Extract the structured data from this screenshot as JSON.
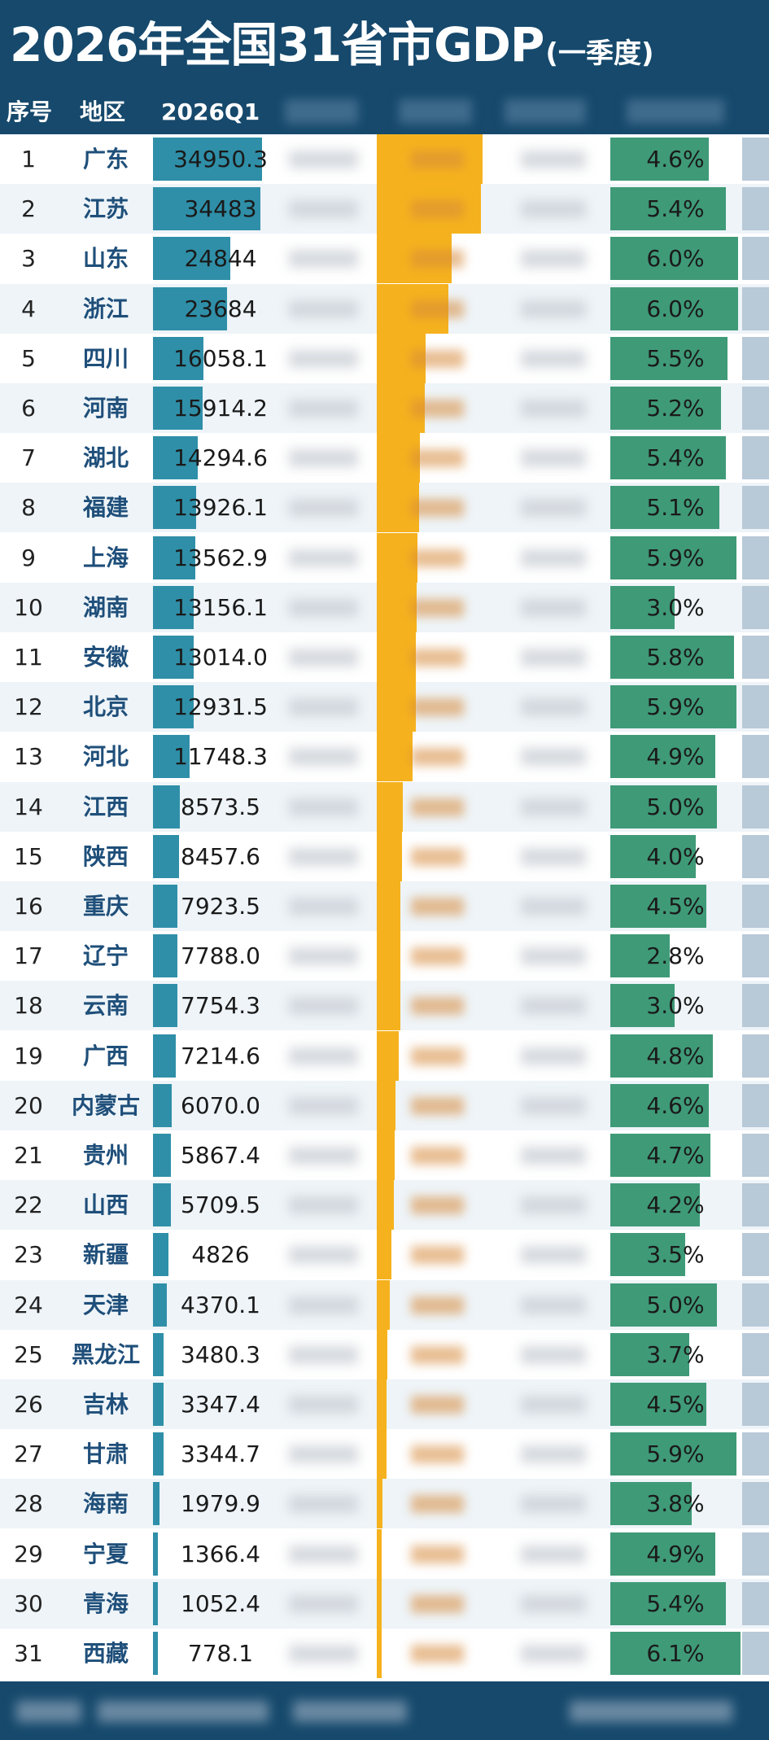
{
  "title": {
    "main": "2026年全国31省市GDP",
    "sub": "(一季度)"
  },
  "header": {
    "rank": "序号",
    "region": "地区",
    "gdp": "2026Q1"
  },
  "colors": {
    "navy": "#16496c",
    "gdp_bar": "#2f8fa8",
    "orange": "#f5b21e",
    "growth_bar": "#3f9a78",
    "row_alt": "#eef4f8"
  },
  "chart_data": {
    "type": "table",
    "title": "2026年全国31省市GDP(一季度)",
    "columns": [
      "序号",
      "地区",
      "2026Q1",
      "增速"
    ],
    "gdp_max": 34950.3,
    "growth_max": 6.1,
    "rows": [
      {
        "rank": "1",
        "region": "广东",
        "gdp": "34950.3",
        "gdp_value": 34950.3,
        "growth": "4.6%",
        "growth_value": 4.6
      },
      {
        "rank": "2",
        "region": "江苏",
        "gdp": "34483",
        "gdp_value": 34483,
        "growth": "5.4%",
        "growth_value": 5.4
      },
      {
        "rank": "3",
        "region": "山东",
        "gdp": "24844",
        "gdp_value": 24844,
        "growth": "6.0%",
        "growth_value": 6.0
      },
      {
        "rank": "4",
        "region": "浙江",
        "gdp": "23684",
        "gdp_value": 23684,
        "growth": "6.0%",
        "growth_value": 6.0
      },
      {
        "rank": "5",
        "region": "四川",
        "gdp": "16058.1",
        "gdp_value": 16058.1,
        "growth": "5.5%",
        "growth_value": 5.5
      },
      {
        "rank": "6",
        "region": "河南",
        "gdp": "15914.2",
        "gdp_value": 15914.2,
        "growth": "5.2%",
        "growth_value": 5.2
      },
      {
        "rank": "7",
        "region": "湖北",
        "gdp": "14294.6",
        "gdp_value": 14294.6,
        "growth": "5.4%",
        "growth_value": 5.4
      },
      {
        "rank": "8",
        "region": "福建",
        "gdp": "13926.1",
        "gdp_value": 13926.1,
        "growth": "5.1%",
        "growth_value": 5.1
      },
      {
        "rank": "9",
        "region": "上海",
        "gdp": "13562.9",
        "gdp_value": 13562.9,
        "growth": "5.9%",
        "growth_value": 5.9
      },
      {
        "rank": "10",
        "region": "湖南",
        "gdp": "13156.1",
        "gdp_value": 13156.1,
        "growth": "3.0%",
        "growth_value": 3.0
      },
      {
        "rank": "11",
        "region": "安徽",
        "gdp": "13014.0",
        "gdp_value": 13014.0,
        "growth": "5.8%",
        "growth_value": 5.8
      },
      {
        "rank": "12",
        "region": "北京",
        "gdp": "12931.5",
        "gdp_value": 12931.5,
        "growth": "5.9%",
        "growth_value": 5.9
      },
      {
        "rank": "13",
        "region": "河北",
        "gdp": "11748.3",
        "gdp_value": 11748.3,
        "growth": "4.9%",
        "growth_value": 4.9
      },
      {
        "rank": "14",
        "region": "江西",
        "gdp": "8573.5",
        "gdp_value": 8573.5,
        "growth": "5.0%",
        "growth_value": 5.0
      },
      {
        "rank": "15",
        "region": "陕西",
        "gdp": "8457.6",
        "gdp_value": 8457.6,
        "growth": "4.0%",
        "growth_value": 4.0
      },
      {
        "rank": "16",
        "region": "重庆",
        "gdp": "7923.5",
        "gdp_value": 7923.5,
        "growth": "4.5%",
        "growth_value": 4.5
      },
      {
        "rank": "17",
        "region": "辽宁",
        "gdp": "7788.0",
        "gdp_value": 7788.0,
        "growth": "2.8%",
        "growth_value": 2.8
      },
      {
        "rank": "18",
        "region": "云南",
        "gdp": "7754.3",
        "gdp_value": 7754.3,
        "growth": "3.0%",
        "growth_value": 3.0
      },
      {
        "rank": "19",
        "region": "广西",
        "gdp": "7214.6",
        "gdp_value": 7214.6,
        "growth": "4.8%",
        "growth_value": 4.8
      },
      {
        "rank": "20",
        "region": "内蒙古",
        "gdp": "6070.0",
        "gdp_value": 6070.0,
        "growth": "4.6%",
        "growth_value": 4.6
      },
      {
        "rank": "21",
        "region": "贵州",
        "gdp": "5867.4",
        "gdp_value": 5867.4,
        "growth": "4.7%",
        "growth_value": 4.7
      },
      {
        "rank": "22",
        "region": "山西",
        "gdp": "5709.5",
        "gdp_value": 5709.5,
        "growth": "4.2%",
        "growth_value": 4.2
      },
      {
        "rank": "23",
        "region": "新疆",
        "gdp": "4826",
        "gdp_value": 4826,
        "growth": "3.5%",
        "growth_value": 3.5
      },
      {
        "rank": "24",
        "region": "天津",
        "gdp": "4370.1",
        "gdp_value": 4370.1,
        "growth": "5.0%",
        "growth_value": 5.0
      },
      {
        "rank": "25",
        "region": "黑龙江",
        "gdp": "3480.3",
        "gdp_value": 3480.3,
        "growth": "3.7%",
        "growth_value": 3.7
      },
      {
        "rank": "26",
        "region": "吉林",
        "gdp": "3347.4",
        "gdp_value": 3347.4,
        "growth": "4.5%",
        "growth_value": 4.5
      },
      {
        "rank": "27",
        "region": "甘肃",
        "gdp": "3344.7",
        "gdp_value": 3344.7,
        "growth": "5.9%",
        "growth_value": 5.9
      },
      {
        "rank": "28",
        "region": "海南",
        "gdp": "1979.9",
        "gdp_value": 1979.9,
        "growth": "3.8%",
        "growth_value": 3.8
      },
      {
        "rank": "29",
        "region": "宁夏",
        "gdp": "1366.4",
        "gdp_value": 1366.4,
        "growth": "4.9%",
        "growth_value": 4.9
      },
      {
        "rank": "30",
        "region": "青海",
        "gdp": "1052.4",
        "gdp_value": 1052.4,
        "growth": "5.4%",
        "growth_value": 5.4
      },
      {
        "rank": "31",
        "region": "西藏",
        "gdp": "778.1",
        "gdp_value": 778.1,
        "growth": "6.1%",
        "growth_value": 6.1
      }
    ]
  }
}
